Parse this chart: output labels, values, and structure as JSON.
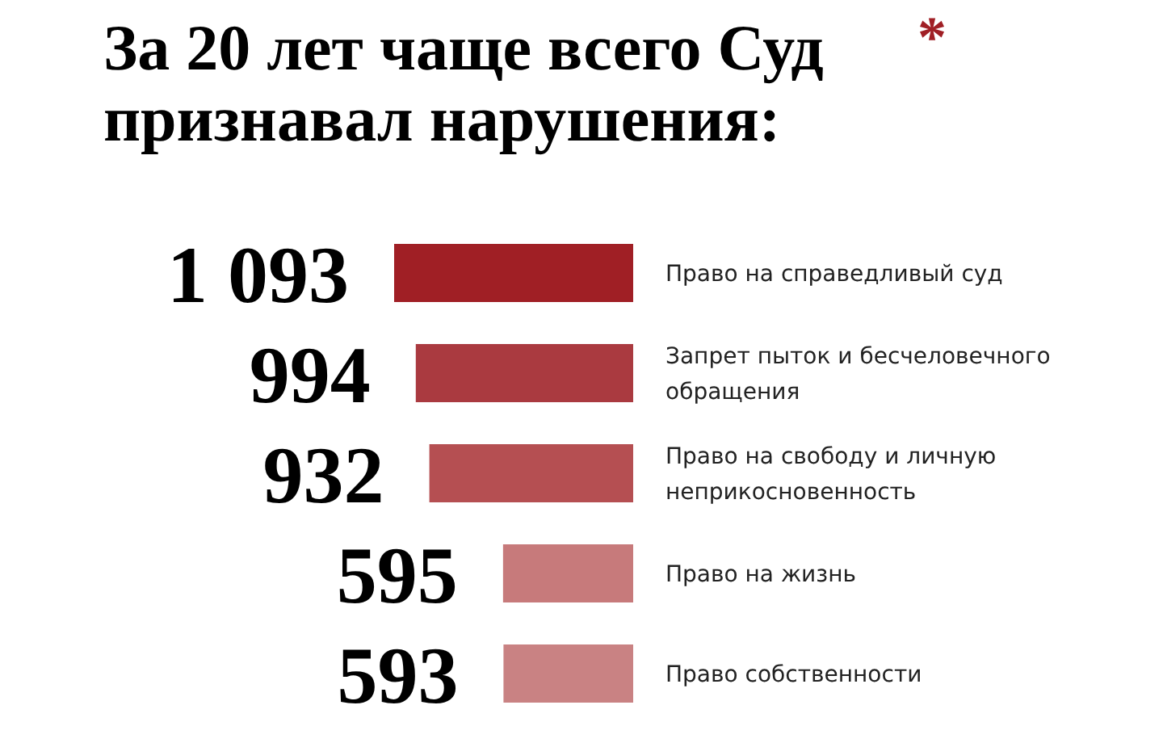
{
  "chart_data": {
    "type": "bar",
    "orientation": "horizontal",
    "title": "За 20 лет чаще всего Суд признавал нарушения:",
    "annotations": [
      "*"
    ],
    "categories": [
      "Право на справедливый суд",
      "Запрет пыток и бесчеловечного обращения",
      "Право на свободу и личную неприкосновенность",
      "Право на жизнь",
      "Право собственности"
    ],
    "values": [
      1093,
      994,
      932,
      595,
      593
    ],
    "colors": [
      "#a01f25",
      "#aa3a40",
      "#b54f52",
      "#c77a7b",
      "#c98283"
    ],
    "data_labels": true
  }
}
